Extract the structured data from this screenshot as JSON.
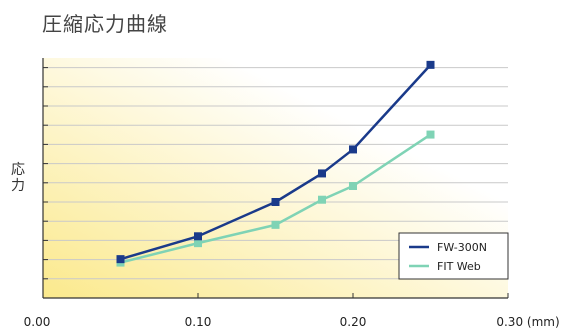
{
  "chart_data": {
    "type": "line",
    "title": "圧縮応力曲線",
    "ylabel": "応力",
    "xlabel": "",
    "x_unit": "(mm)",
    "xlim": [
      0.0,
      0.3
    ],
    "x_ticks": [
      0.0,
      0.1,
      0.2,
      0.3
    ],
    "x_tick_labels": [
      "0.00",
      "0.10",
      "0.20",
      "0.30"
    ],
    "y_scale": "unlabeled",
    "ylim": [
      0,
      10.5
    ],
    "y_minor_tick_count": 12,
    "grid": true,
    "legend_position": "bottom-right",
    "series": [
      {
        "name": "FW-300N",
        "color": "#1a3a8a",
        "marker": "square",
        "x": [
          0.05,
          0.1,
          0.15,
          0.18,
          0.2,
          0.25
        ],
        "y": [
          1.7,
          2.7,
          4.2,
          5.45,
          6.5,
          10.2
        ]
      },
      {
        "name": "FIT Web",
        "color": "#7fd3b5",
        "marker": "square",
        "x": [
          0.05,
          0.1,
          0.15,
          0.18,
          0.2,
          0.25
        ],
        "y": [
          1.55,
          2.4,
          3.2,
          4.3,
          4.9,
          7.15
        ]
      }
    ]
  }
}
